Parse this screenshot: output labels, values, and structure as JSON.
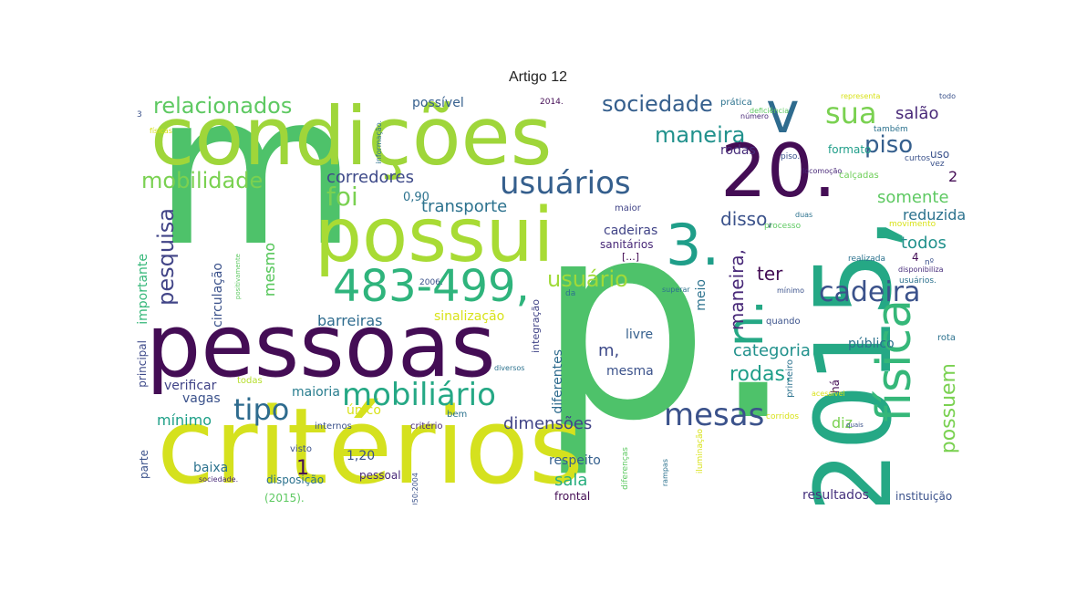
{
  "title": "Artigo 12",
  "words": [
    {
      "text": "m",
      "color": "#4ec26a"
    },
    {
      "text": "p.",
      "color": "#4ec26a"
    },
    {
      "text": "critérios",
      "color": "#d5e11e"
    },
    {
      "text": "condições",
      "color": "#9fd63a"
    },
    {
      "text": "pessoas",
      "color": "#440d55"
    },
    {
      "text": "possui",
      "color": "#a8db34"
    },
    {
      "text": "2015,",
      "color": "#25a885"
    },
    {
      "text": "20.",
      "color": "#440d55"
    },
    {
      "text": "v",
      "color": "#2e6b8e"
    },
    {
      "text": "3.",
      "color": "#1f9e89"
    },
    {
      "text": "n.",
      "color": "#25a885"
    },
    {
      "text": "483-499,",
      "color": "#2fb47c"
    },
    {
      "text": "física",
      "color": "#35b779"
    },
    {
      "text": "mobiliário",
      "color": "#25a885"
    },
    {
      "text": "usuários",
      "color": "#355f8d"
    },
    {
      "text": "mesas",
      "color": "#3b528b"
    },
    {
      "text": "cadeira",
      "color": "#3b528b"
    },
    {
      "text": "tipo",
      "color": "#2e6b8e"
    },
    {
      "text": "relacionados",
      "color": "#5ec962"
    },
    {
      "text": "mobilidade",
      "color": "#7ad151"
    },
    {
      "text": "sociedade",
      "color": "#355f8d"
    },
    {
      "text": "sua",
      "color": "#7ad151"
    },
    {
      "text": "piso",
      "color": "#355f8d"
    },
    {
      "text": "maneira",
      "color": "#21918c"
    },
    {
      "text": "foi",
      "color": "#7ad151"
    },
    {
      "text": "usuário",
      "color": "#a0da39"
    },
    {
      "text": "pesquisa",
      "color": "#414487"
    },
    {
      "text": "possuem",
      "color": "#7ad151"
    },
    {
      "text": "corredores",
      "color": "#3e4a89"
    },
    {
      "text": "transporte",
      "color": "#2c728e"
    },
    {
      "text": "salão",
      "color": "#482878"
    },
    {
      "text": "somente",
      "color": "#5ec962"
    },
    {
      "text": "reduzida.",
      "color": "#2c728e"
    },
    {
      "text": "2",
      "color": "#440d55"
    },
    {
      "text": "disso,",
      "color": "#3b528b"
    },
    {
      "text": "todos",
      "color": "#21918c"
    },
    {
      "text": "ter",
      "color": "#440d55"
    },
    {
      "text": "maneira,",
      "color": "#482878"
    },
    {
      "text": "categoria",
      "color": "#21918c"
    },
    {
      "text": "rodas.",
      "color": "#1f9e89"
    },
    {
      "text": "dimensões",
      "color": "#414487"
    },
    {
      "text": "diz",
      "color": "#7ad151"
    },
    {
      "text": "barreiras",
      "color": "#2e6b8e"
    },
    {
      "text": "sinalização",
      "color": "#d8e219"
    },
    {
      "text": "mesmo",
      "color": "#5ec962"
    },
    {
      "text": "circulação",
      "color": "#3b528b"
    },
    {
      "text": "importante",
      "color": "#35b779"
    },
    {
      "text": "vagas",
      "color": "#3b528b"
    },
    {
      "text": "mínimo",
      "color": "#1fa088"
    },
    {
      "text": "maioria",
      "color": "#287d8e"
    },
    {
      "text": "verificar",
      "color": "#404387"
    },
    {
      "text": "sala",
      "color": "#29af7f"
    },
    {
      "text": "respeito",
      "color": "#355f8d"
    },
    {
      "text": "resultados",
      "color": "#46327e"
    },
    {
      "text": "instituição",
      "color": "#3b528b"
    },
    {
      "text": "baixa",
      "color": "#2c728e"
    },
    {
      "text": "1,20",
      "color": "#3b528b"
    },
    {
      "text": "1",
      "color": "#440d55"
    },
    {
      "text": "m,",
      "color": "#3e4a89"
    },
    {
      "text": "mesma",
      "color": "#3b528b"
    },
    {
      "text": "livre",
      "color": "#355f8d"
    },
    {
      "text": "público",
      "color": "#2c728e"
    },
    {
      "text": "cadeiras",
      "color": "#414487"
    },
    {
      "text": "sanitários",
      "color": "#482878"
    },
    {
      "text": "rodas",
      "color": "#472d7b"
    },
    {
      "text": "uso",
      "color": "#3b528b"
    },
    {
      "text": "possível",
      "color": "#355f8d"
    },
    {
      "text": "0,90",
      "color": "#2c728e"
    },
    {
      "text": "diferentes",
      "color": "#2e6b8e"
    },
    {
      "text": "integração",
      "color": "#404387"
    },
    {
      "text": "meio",
      "color": "#2c728e"
    },
    {
      "text": "único",
      "color": "#d8e219"
    },
    {
      "text": "pessoal",
      "color": "#482878"
    },
    {
      "text": "disposição",
      "color": "#2c728e"
    },
    {
      "text": "principal",
      "color": "#3e4a89"
    },
    {
      "text": "parte",
      "color": "#3b528b"
    },
    {
      "text": "frontal",
      "color": "#440d55"
    },
    {
      "text": "(2015).",
      "color": "#5ec962"
    },
    {
      "text": "quando",
      "color": "#3b528b"
    },
    {
      "text": "mesmo",
      "color": "#5ec962"
    },
    {
      "text": "rota",
      "color": "#2c728e"
    },
    {
      "text": "maior",
      "color": "#414487"
    },
    {
      "text": "formato",
      "color": "#1f9e89"
    },
    {
      "text": "calçadas",
      "color": "#6ece58"
    },
    {
      "text": "prática",
      "color": "#2c728e"
    },
    {
      "text": "2014.",
      "color": "#440d55"
    },
    {
      "text": "2006.",
      "color": "#3b528b"
    },
    {
      "text": "[...]",
      "color": "#440d55"
    },
    {
      "text": "visto",
      "color": "#3b528b"
    },
    {
      "text": "todas",
      "color": "#b5de2b"
    },
    {
      "text": "bem",
      "color": "#2c728e"
    },
    {
      "text": "critério",
      "color": "#482878"
    },
    {
      "text": "internos",
      "color": "#3b528b"
    },
    {
      "text": "diversos",
      "color": "#2c728e"
    },
    {
      "text": "realizada",
      "color": "#2c728e"
    },
    {
      "text": "4",
      "color": "#440d55"
    },
    {
      "text": "nº",
      "color": "#3b528b"
    },
    {
      "text": "usuários.",
      "color": "#2c728e"
    },
    {
      "text": "disponibiliza",
      "color": "#472d7b"
    },
    {
      "text": "duas",
      "color": "#2c728e"
    },
    {
      "text": "processo",
      "color": "#5ec962"
    },
    {
      "text": "movimento",
      "color": "#d8e219"
    },
    {
      "text": "vez",
      "color": "#3b528b"
    },
    {
      "text": "curtos",
      "color": "#3b528b"
    },
    {
      "text": "também",
      "color": "#2c728e"
    },
    {
      "text": "número",
      "color": "#482878"
    },
    {
      "text": "representa",
      "color": "#d8e219"
    },
    {
      "text": "todo",
      "color": "#3b528b"
    },
    {
      "text": "corridos",
      "color": "#d8e219"
    },
    {
      "text": "quais",
      "color": "#3b528b"
    },
    {
      "text": "há",
      "color": "#440d55"
    },
    {
      "text": "primeiro",
      "color": "#2c728e"
    },
    {
      "text": "diferenças",
      "color": "#5ec962"
    },
    {
      "text": "rampas",
      "color": "#2c728e"
    },
    {
      "text": "iluminação",
      "color": "#d8e219"
    },
    {
      "text": "9050:2004",
      "color": "#3b528b"
    },
    {
      "text": "sociedade.",
      "color": "#482878"
    },
    {
      "text": "piso.",
      "color": "#3b528b"
    },
    {
      "text": "físicas",
      "color": "#d8e219"
    },
    {
      "text": "informação.",
      "color": "#2c728e"
    },
    {
      "text": "deficiência",
      "color": "#5ec962"
    },
    {
      "text": "acessível",
      "color": "#d8e219"
    },
    {
      "text": "superar",
      "color": "#2c728e"
    },
    {
      "text": "positivamente",
      "color": "#5ec962"
    },
    {
      "text": "mínimo",
      "color": "#3b528b"
    },
    {
      "text": "locomoção",
      "color": "#482878"
    },
    {
      "text": "3",
      "color": "#3b528b"
    },
    {
      "text": "da",
      "color": "#2c728e"
    }
  ]
}
